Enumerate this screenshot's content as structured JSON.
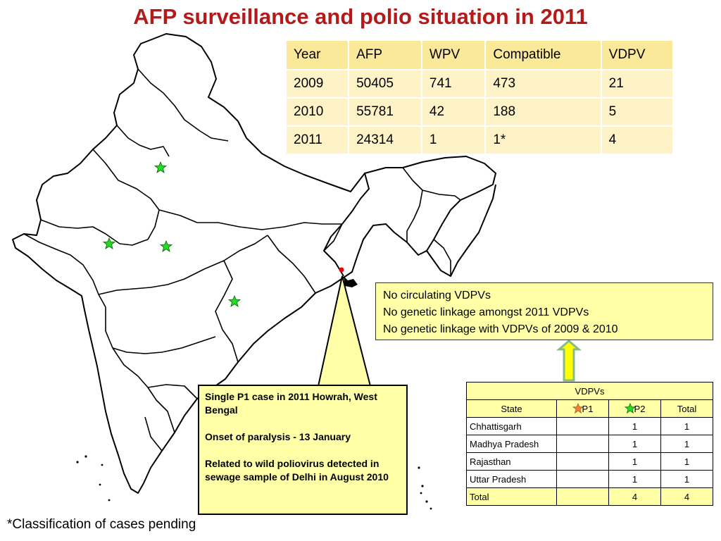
{
  "title": "AFP surveillance and polio situation in 2011",
  "summary_table": {
    "headers": [
      "Year",
      "AFP",
      "WPV",
      "Compatible",
      "VDPV"
    ],
    "rows": [
      [
        "2009",
        "50405",
        "741",
        "473",
        "21"
      ],
      [
        "2010",
        "55781",
        "42",
        "188",
        "5"
      ],
      [
        "2011",
        "24314",
        "1",
        "1*",
        "4"
      ]
    ]
  },
  "notes": [
    "No circulating VDPVs",
    "No genetic linkage amongst 2011 VDPVs",
    "No genetic linkage with VDPVs of 2009 & 2010"
  ],
  "callout": {
    "line1": "Single P1 case in 2011 Howrah, West Bengal",
    "line2": "Onset of paralysis - 13 January",
    "line3": "Related to wild poliovirus detected in sewage sample of Delhi in August 2010"
  },
  "vdpv_table": {
    "title": "VDPVs",
    "headers": [
      "State",
      "P1",
      "P2",
      "Total"
    ],
    "rows": [
      [
        "Chhattisgarh",
        "",
        "1",
        "1"
      ],
      [
        "Madhya Pradesh",
        "",
        "1",
        "1"
      ],
      [
        "Rajasthan",
        "",
        "1",
        "1"
      ],
      [
        "Uttar Pradesh",
        "",
        "1",
        "1"
      ]
    ],
    "total": [
      "Total",
      "",
      "4",
      "4"
    ]
  },
  "footnote": "*Classification of cases pending",
  "colors": {
    "title": "#b31b1b",
    "vdpv_star": "#22dd22",
    "p1_star": "#f08040",
    "wpv_dot": "#ee0000",
    "box_fill": "#ffffa8",
    "arrow_fill": "#ffff00",
    "arrow_stroke": "#88bb88"
  },
  "map_markers": [
    {
      "type": "vdpv",
      "icon": "green-star-icon",
      "state": "Uttar Pradesh"
    },
    {
      "type": "vdpv",
      "icon": "green-star-icon",
      "state": "Rajasthan"
    },
    {
      "type": "vdpv",
      "icon": "green-star-icon",
      "state": "Madhya Pradesh"
    },
    {
      "type": "vdpv",
      "icon": "green-star-icon",
      "state": "Chhattisgarh"
    },
    {
      "type": "wpv",
      "icon": "red-dot-icon",
      "state": "West Bengal"
    }
  ]
}
